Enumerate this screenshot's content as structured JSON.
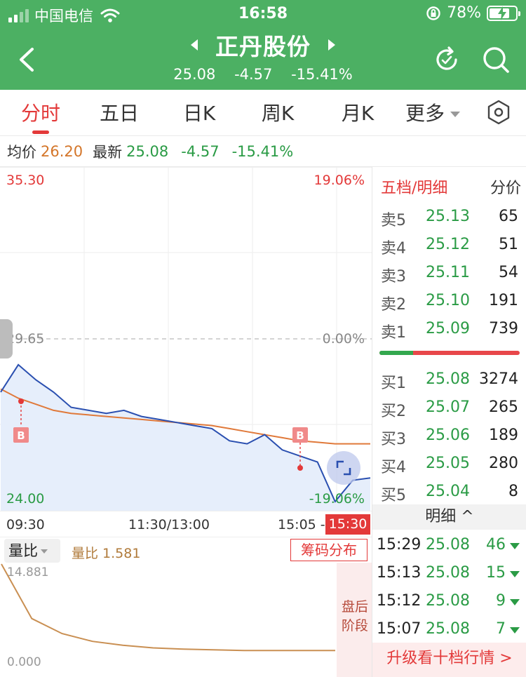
{
  "status_bar": {
    "carrier": "中国电信",
    "time": "16:58",
    "battery": "78%"
  },
  "header": {
    "stock_name": "正丹股份",
    "price": "25.08",
    "change": "-4.57",
    "change_pct": "-15.41%"
  },
  "tabs": [
    {
      "label": "分时"
    },
    {
      "label": "五日"
    },
    {
      "label": "日K"
    },
    {
      "label": "周K"
    },
    {
      "label": "月K"
    },
    {
      "label": "更多"
    }
  ],
  "info_bar": {
    "avg_label": "均价",
    "avg_value": "26.20",
    "latest_label": "最新",
    "latest_value": "25.08",
    "change": "-4.57",
    "change_pct": "-15.41%"
  },
  "price_chart": {
    "y_high": "35.30",
    "y_mid": "29.65",
    "y_low": "24.00",
    "pct_high": "19.06%",
    "pct_mid": "0.00%",
    "pct_low": "-19.06%",
    "marker_label": "B",
    "time_labels": [
      "09:30",
      "11:30/13:00",
      "15:05 -"
    ],
    "close_time": "15:30"
  },
  "volume_ratio": {
    "selector": "量比",
    "value_label": "量比 1.581",
    "y_max": "14.881",
    "y_min": "0.000",
    "chip_button": "筹码分布",
    "after_hours": "盘后阶段"
  },
  "order_book": {
    "title": "五档/明细",
    "subtitle": "分价",
    "asks": [
      {
        "name": "卖5",
        "price": "25.13",
        "qty": "65"
      },
      {
        "name": "卖4",
        "price": "25.12",
        "qty": "51"
      },
      {
        "name": "卖3",
        "price": "25.11",
        "qty": "54"
      },
      {
        "name": "卖2",
        "price": "25.10",
        "qty": "191"
      },
      {
        "name": "卖1",
        "price": "25.09",
        "qty": "739"
      }
    ],
    "bids": [
      {
        "name": "买1",
        "price": "25.08",
        "qty": "3274"
      },
      {
        "name": "买2",
        "price": "25.07",
        "qty": "265"
      },
      {
        "name": "买3",
        "price": "25.06",
        "qty": "189"
      },
      {
        "name": "买4",
        "price": "25.05",
        "qty": "280"
      },
      {
        "name": "买5",
        "price": "25.04",
        "qty": "8"
      }
    ]
  },
  "trade_detail": {
    "header": "明细 ^",
    "rows": [
      {
        "time": "15:29",
        "price": "25.08",
        "qty": "46"
      },
      {
        "time": "15:13",
        "price": "25.08",
        "qty": "15"
      },
      {
        "time": "15:12",
        "price": "25.08",
        "qty": "9"
      },
      {
        "time": "15:07",
        "price": "25.08",
        "qty": "7"
      }
    ],
    "upgrade": "升级看十档行情 >"
  },
  "colors": {
    "brand_green": "#4cb063",
    "rise_red": "#e33939",
    "fall_green": "#2a9b45",
    "price_line": "#2a4fb0",
    "avg_line": "#e0793a"
  },
  "chart_data": [
    {
      "type": "line",
      "series": [
        {
          "values": [
            27.9,
            28.8,
            28.3,
            27.9,
            27.4,
            27.3,
            27.2,
            27.3,
            27.1,
            27.0,
            26.9,
            26.8,
            26.7,
            26.3,
            26.2,
            26.5,
            26.0,
            25.8,
            25.6,
            24.3,
            25.0,
            25.08
          ]
        },
        {
          "values": [
            28.0,
            27.7,
            27.5,
            27.3,
            27.2,
            27.15,
            27.1,
            27.05,
            27.0,
            26.95,
            26.9,
            26.85,
            26.8,
            26.7,
            26.6,
            26.5,
            26.4,
            26.3,
            26.25,
            26.2,
            26.2,
            26.2
          ]
        }
      ],
      "ylim": [
        24.0,
        35.3
      ],
      "xlabel": "",
      "ylabel": ""
    },
    {
      "type": "line",
      "series": [
        {
          "values": [
            14.881,
            6.5,
            4.2,
            3.0,
            2.4,
            2.0,
            1.8,
            1.7,
            1.6,
            1.58,
            1.581,
            1.581
          ]
        }
      ],
      "ylim": [
        0.0,
        14.881
      ]
    }
  ]
}
